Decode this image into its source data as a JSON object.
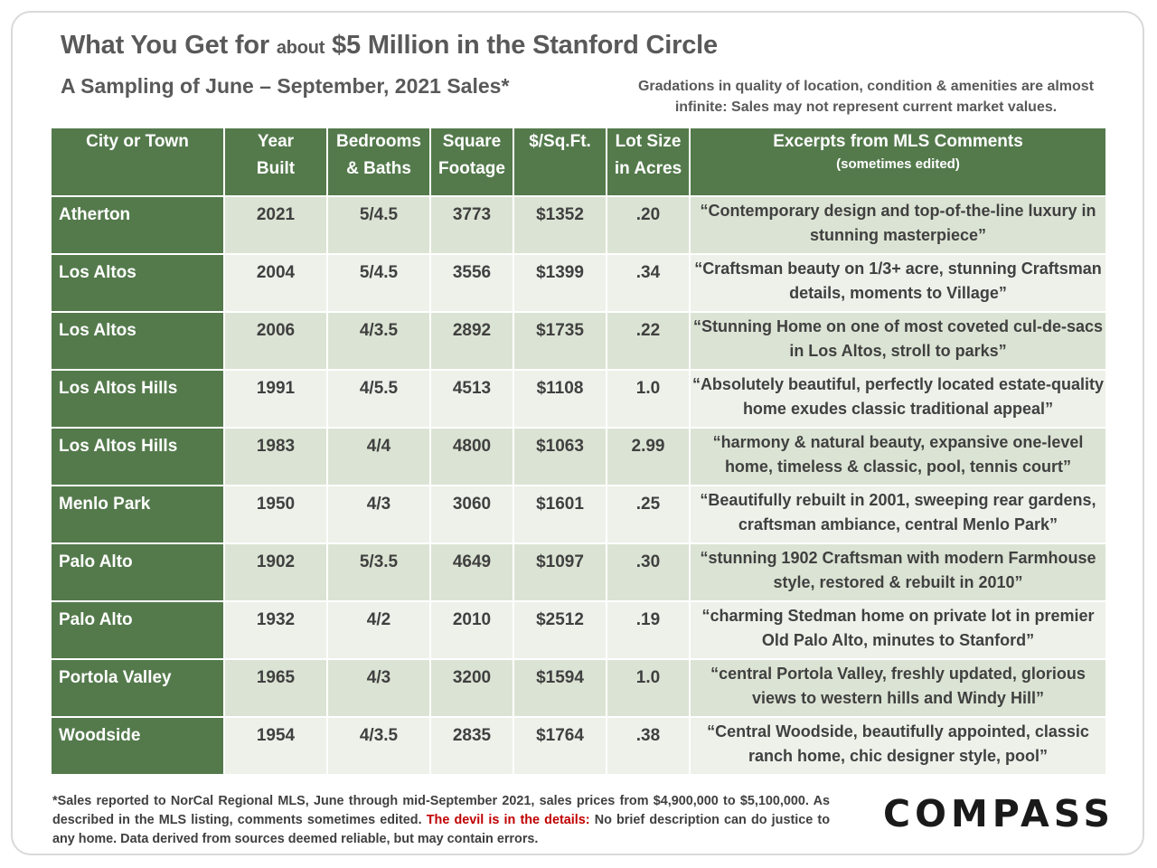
{
  "title": {
    "part1": "What You Get for",
    "part2": "about",
    "part3": "$5 Million in the Stanford Circle"
  },
  "subtitle": "A Sampling of June – September, 2021 Sales*",
  "note": "Gradations in quality of location, condition & amenities are almost infinite: Sales may not represent current market values.",
  "headers": {
    "city": "City or Town",
    "year_1": "Year",
    "year_2": "Built",
    "beds_1": "Bedrooms",
    "beds_2": "& Baths",
    "sqft_1": "Square",
    "sqft_2": "Footage",
    "ppsf": "$/Sq.Ft.",
    "lot_1": "Lot Size",
    "lot_2": "in Acres",
    "comments": "Excerpts from MLS Comments",
    "comments_sub": "(sometimes edited)"
  },
  "rows": [
    {
      "city": "Atherton",
      "year": "2021",
      "beds": "5/4.5",
      "sqft": "3773",
      "ppsf": "$1352",
      "lot": ".20",
      "comment": "“Contemporary design and top-of-the-line luxury in stunning masterpiece”"
    },
    {
      "city": "Los Altos",
      "year": "2004",
      "beds": "5/4.5",
      "sqft": "3556",
      "ppsf": "$1399",
      "lot": ".34",
      "comment": "“Craftsman beauty on 1/3+ acre, stunning Craftsman details, moments to Village”"
    },
    {
      "city": "Los Altos",
      "year": "2006",
      "beds": "4/3.5",
      "sqft": "2892",
      "ppsf": "$1735",
      "lot": ".22",
      "comment": "“Stunning Home on one of most coveted cul-de-sacs in Los Altos, stroll to parks”"
    },
    {
      "city": "Los Altos Hills",
      "year": "1991",
      "beds": "4/5.5",
      "sqft": "4513",
      "ppsf": "$1108",
      "lot": "1.0",
      "comment": "“Absolutely beautiful, perfectly located estate-quality home exudes classic traditional appeal”"
    },
    {
      "city": "Los Altos Hills",
      "year": "1983",
      "beds": "4/4",
      "sqft": "4800",
      "ppsf": "$1063",
      "lot": "2.99",
      "comment": "“harmony & natural beauty, expansive one-level home, timeless & classic, pool, tennis court”"
    },
    {
      "city": "Menlo Park",
      "year": "1950",
      "beds": "4/3",
      "sqft": "3060",
      "ppsf": "$1601",
      "lot": ".25",
      "comment": "“Beautifully rebuilt in 2001, sweeping rear gardens, craftsman ambiance, central Menlo Park”"
    },
    {
      "city": "Palo Alto",
      "year": "1902",
      "beds": "5/3.5",
      "sqft": "4649",
      "ppsf": "$1097",
      "lot": ".30",
      "comment": "“stunning 1902 Craftsman with modern Farmhouse style, restored & rebuilt in 2010”"
    },
    {
      "city": "Palo Alto",
      "year": "1932",
      "beds": "4/2",
      "sqft": "2010",
      "ppsf": "$2512",
      "lot": ".19",
      "comment": "“charming Stedman home on private lot in premier Old Palo Alto, minutes to Stanford”"
    },
    {
      "city": "Portola Valley",
      "year": "1965",
      "beds": "4/3",
      "sqft": "3200",
      "ppsf": "$1594",
      "lot": "1.0",
      "comment": "“central Portola Valley, freshly updated, glorious views to western hills and Windy Hill”"
    },
    {
      "city": "Woodside",
      "year": "1954",
      "beds": "4/3.5",
      "sqft": "2835",
      "ppsf": "$1764",
      "lot": ".38",
      "comment": "“Central Woodside, beautifully appointed, classic ranch home, chic designer style, pool”"
    }
  ],
  "footnote": {
    "part1": "*Sales reported to NorCal Regional MLS, June through mid-September 2021, sales prices from $4,900,000 to $5,100,000. As described in the MLS listing, comments sometimes edited.",
    "red": "The devil is in the details:",
    "part2": "No brief description can do justice to any home. Data derived from sources deemed reliable, but may contain errors."
  },
  "logo_text": "COMPASS",
  "colors": {
    "header_green": "#547a4c",
    "row_light": "#edf1ea",
    "row_dark": "#dbe4d4",
    "accent_red": "#c00000"
  }
}
